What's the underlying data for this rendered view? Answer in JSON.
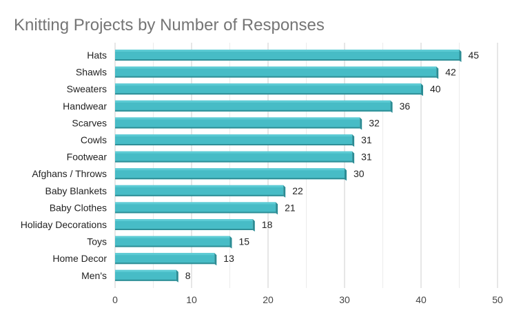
{
  "chart_data": {
    "type": "bar",
    "orientation": "horizontal",
    "title": "Knitting Projects by Number of Responses",
    "categories": [
      "Hats",
      "Shawls",
      "Sweaters",
      "Handwear",
      "Scarves",
      "Cowls",
      "Footwear",
      "Afghans / Throws",
      "Baby Blankets",
      "Baby Clothes",
      "Holiday Decorations",
      "Toys",
      "Home Decor",
      "Men's"
    ],
    "values": [
      45,
      42,
      40,
      36,
      32,
      31,
      31,
      30,
      22,
      21,
      18,
      15,
      13,
      8
    ],
    "data_labels": [
      "45",
      "42",
      "40",
      "36",
      "32",
      "31",
      "31",
      "30",
      "22",
      "21",
      "18",
      "15",
      "13",
      "8"
    ],
    "xlim": [
      0,
      50
    ],
    "xticks": [
      "0",
      "10",
      "20",
      "30",
      "40",
      "50"
    ],
    "grid": true,
    "legend": "none",
    "colors": {
      "bar": "#47bcc6",
      "bar_top": "#5ccbd4",
      "bar_side": "#2c8c94",
      "bar_bottom": "#2f8f97"
    }
  }
}
